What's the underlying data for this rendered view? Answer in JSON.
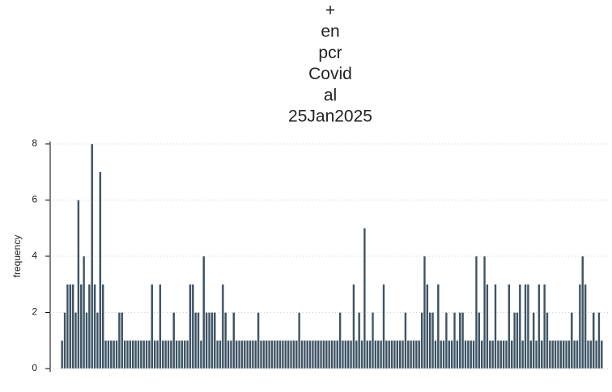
{
  "chart_data": {
    "type": "bar",
    "title": [
      "+",
      "en",
      "pcr",
      "Covid",
      "al",
      "25Jan2025"
    ],
    "ylabel": "frequency",
    "values": [
      1,
      2,
      3,
      3,
      3,
      2,
      6,
      3,
      4,
      2,
      3,
      8,
      3,
      2,
      7,
      3,
      1,
      1,
      1,
      1,
      1,
      2,
      2,
      1,
      1,
      1,
      1,
      1,
      1,
      1,
      1,
      1,
      1,
      3,
      1,
      1,
      3,
      1,
      1,
      1,
      1,
      2,
      1,
      1,
      1,
      1,
      1,
      3,
      3,
      2,
      2,
      1,
      4,
      2,
      2,
      2,
      2,
      1,
      1,
      3,
      2,
      1,
      1,
      2,
      1,
      1,
      1,
      1,
      1,
      1,
      1,
      1,
      2,
      1,
      1,
      1,
      1,
      1,
      1,
      1,
      1,
      1,
      1,
      1,
      1,
      1,
      1,
      2,
      1,
      1,
      1,
      1,
      1,
      1,
      1,
      1,
      1,
      1,
      1,
      1,
      1,
      1,
      2,
      1,
      1,
      1,
      1,
      3,
      1,
      2,
      1,
      5,
      1,
      1,
      2,
      1,
      1,
      1,
      3,
      1,
      1,
      1,
      1,
      1,
      1,
      1,
      2,
      1,
      1,
      1,
      1,
      1,
      2,
      4,
      3,
      2,
      2,
      1,
      3,
      1,
      1,
      2,
      1,
      1,
      2,
      1,
      2,
      2,
      1,
      1,
      1,
      1,
      4,
      2,
      1,
      4,
      3,
      1,
      1,
      3,
      1,
      1,
      1,
      1,
      3,
      1,
      2,
      2,
      3,
      1,
      3,
      3,
      1,
      2,
      1,
      3,
      1,
      3,
      2,
      1,
      1,
      1,
      1,
      1,
      1,
      1,
      1,
      2,
      1,
      1,
      3,
      4,
      3,
      1,
      1,
      2,
      1,
      2,
      1
    ],
    "color": "#3e5465",
    "ylim": [
      0,
      8
    ],
    "yticks": [
      0,
      2,
      4,
      6,
      8
    ],
    "grid": true
  }
}
